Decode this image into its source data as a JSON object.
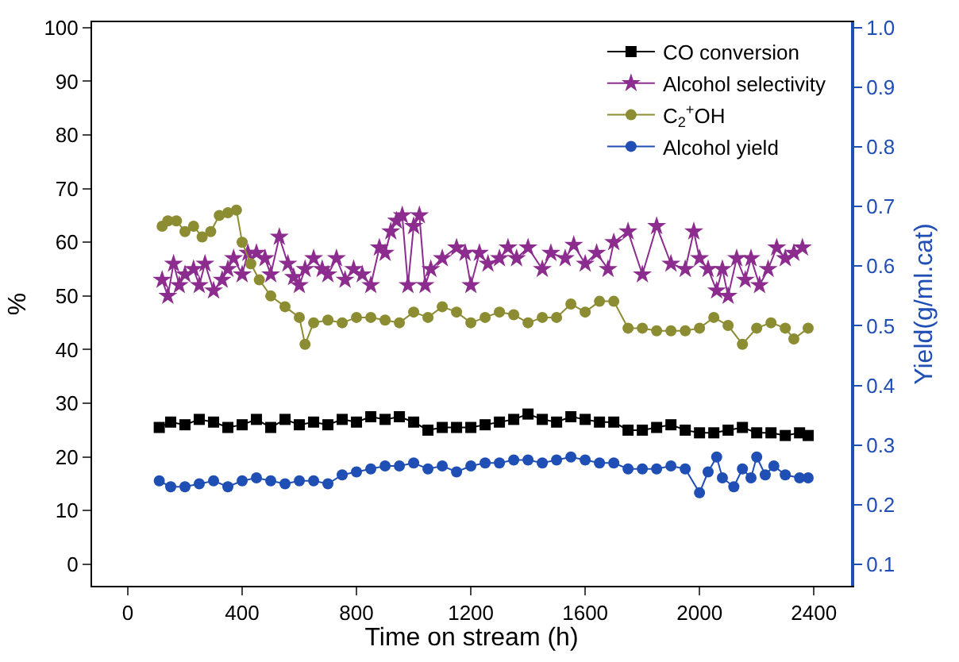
{
  "chart_data": {
    "type": "line",
    "xlabel": "Time on stream (h)",
    "ylabel": "%",
    "y2label": "Yield(g/ml.cat)",
    "xlim": [
      -125,
      2530
    ],
    "xticks": [
      0,
      400,
      800,
      1200,
      1600,
      2000,
      2400
    ],
    "ylim": [
      -4,
      101
    ],
    "yticks": [
      0,
      10,
      20,
      30,
      40,
      50,
      60,
      70,
      80,
      90,
      100
    ],
    "y2lim": [
      0.064,
      1.009
    ],
    "y2ticks": [
      0.1,
      0.2,
      0.3,
      0.4,
      0.5,
      0.6,
      0.7,
      0.8,
      0.9,
      {
        "value": 1,
        "label": "1.0"
      }
    ],
    "grid": false,
    "legend": "top right",
    "line_style": "solid",
    "series": [
      {
        "name": "CO conversion",
        "color": "#000000",
        "marker": "square",
        "x": [
          110,
          150,
          200,
          250,
          300,
          350,
          400,
          450,
          500,
          550,
          600,
          650,
          700,
          750,
          800,
          850,
          900,
          950,
          1000,
          1050,
          1100,
          1150,
          1200,
          1250,
          1300,
          1350,
          1400,
          1450,
          1500,
          1550,
          1600,
          1650,
          1700,
          1750,
          1800,
          1850,
          1900,
          1950,
          2000,
          2050,
          2100,
          2150,
          2200,
          2250,
          2300,
          2350,
          2380
        ],
        "values": [
          25.5,
          26.5,
          26,
          27,
          26.5,
          25.5,
          26,
          27,
          25.5,
          27,
          26,
          26.5,
          26,
          27,
          26.5,
          27.5,
          27,
          27.5,
          26.5,
          25,
          25.5,
          25.5,
          25.5,
          26,
          26.5,
          27,
          28,
          27,
          26.5,
          27.5,
          27,
          26.5,
          26.5,
          25,
          25,
          25.5,
          26,
          25,
          24.5,
          24.5,
          25,
          25.5,
          24.5,
          24.5,
          24,
          24.5,
          24
        ]
      },
      {
        "name": "Alcohol selectivity",
        "color": "#8b2c8e",
        "marker": "star",
        "x": [
          120,
          140,
          160,
          180,
          200,
          230,
          250,
          270,
          300,
          330,
          350,
          370,
          400,
          420,
          450,
          480,
          500,
          530,
          560,
          580,
          600,
          620,
          650,
          680,
          700,
          730,
          760,
          790,
          820,
          850,
          880,
          900,
          920,
          940,
          960,
          980,
          1000,
          1020,
          1040,
          1060,
          1100,
          1150,
          1180,
          1200,
          1230,
          1260,
          1300,
          1330,
          1360,
          1400,
          1450,
          1480,
          1530,
          1560,
          1600,
          1640,
          1680,
          1700,
          1750,
          1800,
          1850,
          1900,
          1950,
          1980,
          2000,
          2030,
          2060,
          2080,
          2100,
          2130,
          2160,
          2180,
          2210,
          2240,
          2270,
          2300,
          2330,
          2360
        ],
        "values": [
          53,
          50,
          56,
          52,
          54,
          55,
          52,
          56,
          51,
          53,
          55,
          57,
          54,
          58,
          58,
          57,
          54,
          61,
          56,
          53.5,
          52,
          55,
          57,
          55,
          54,
          57,
          53,
          55,
          54,
          52,
          59,
          58,
          62,
          64,
          65,
          52,
          63,
          65,
          52,
          55,
          57,
          59,
          58,
          52,
          58,
          56,
          57,
          59,
          57,
          59,
          55,
          58,
          57,
          59.5,
          56,
          58,
          55,
          60,
          62,
          54,
          63,
          56,
          55,
          62,
          57,
          55,
          51,
          55,
          50,
          57,
          53,
          57,
          52,
          55,
          59,
          57,
          58,
          59
        ]
      },
      {
        "name": "C$_{2}$$^{+}$OH",
        "color": "#8c8c32",
        "marker": "circle",
        "x": [
          120,
          140,
          170,
          200,
          230,
          260,
          290,
          320,
          350,
          380,
          400,
          430,
          460,
          500,
          550,
          600,
          620,
          650,
          700,
          750,
          800,
          850,
          900,
          950,
          1000,
          1050,
          1100,
          1150,
          1200,
          1250,
          1300,
          1350,
          1400,
          1450,
          1500,
          1550,
          1600,
          1650,
          1700,
          1750,
          1800,
          1850,
          1900,
          1950,
          2000,
          2050,
          2100,
          2150,
          2200,
          2250,
          2300,
          2330,
          2380
        ],
        "values": [
          63,
          64,
          64,
          62,
          63,
          61,
          62,
          65,
          65.5,
          66,
          60,
          56,
          53,
          50,
          48,
          46,
          41,
          45,
          45.5,
          45,
          46,
          46,
          45.5,
          45,
          47,
          46,
          48,
          47,
          45,
          46,
          47,
          46.5,
          45,
          46,
          46,
          48.5,
          47,
          49,
          49,
          44,
          44,
          43.5,
          43.5,
          43.5,
          44,
          46,
          44.5,
          41,
          44,
          45,
          44,
          42,
          44
        ]
      },
      {
        "name": "Alcohol yield",
        "color": "#1f4eb4",
        "marker": "circle",
        "axis": "y2",
        "x": [
          110,
          150,
          200,
          250,
          300,
          350,
          400,
          450,
          500,
          550,
          600,
          650,
          700,
          750,
          800,
          850,
          900,
          950,
          1000,
          1050,
          1100,
          1150,
          1200,
          1250,
          1300,
          1350,
          1400,
          1450,
          1500,
          1550,
          1600,
          1650,
          1700,
          1750,
          1800,
          1850,
          1900,
          1950,
          2000,
          2030,
          2060,
          2080,
          2120,
          2150,
          2180,
          2200,
          2230,
          2260,
          2300,
          2350,
          2380
        ],
        "values": [
          0.24,
          0.23,
          0.23,
          0.235,
          0.24,
          0.23,
          0.24,
          0.245,
          0.24,
          0.235,
          0.24,
          0.24,
          0.235,
          0.25,
          0.255,
          0.26,
          0.265,
          0.265,
          0.27,
          0.26,
          0.265,
          0.255,
          0.265,
          0.27,
          0.27,
          0.275,
          0.275,
          0.27,
          0.275,
          0.28,
          0.275,
          0.27,
          0.27,
          0.26,
          0.26,
          0.26,
          0.265,
          0.26,
          0.22,
          0.255,
          0.28,
          0.245,
          0.23,
          0.26,
          0.245,
          0.28,
          0.25,
          0.265,
          0.25,
          0.245,
          0.245
        ]
      }
    ]
  }
}
